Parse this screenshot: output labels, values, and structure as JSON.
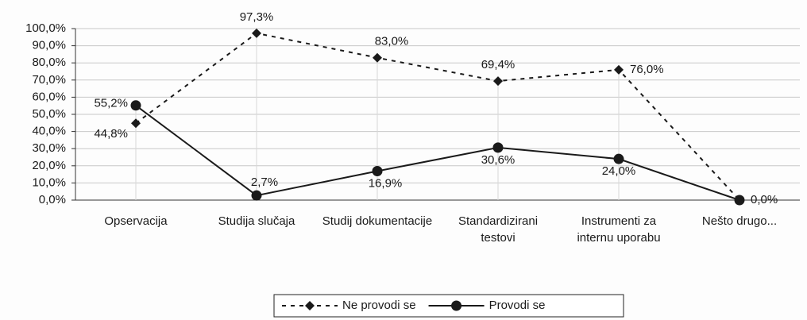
{
  "chart_data": {
    "type": "line",
    "categories": [
      "Opservacija",
      "Studija slučaja",
      "Studij dokumentacije",
      "Standardizirani testovi",
      "Instrumenti za internu uporabu",
      "Nešto drugo..."
    ],
    "series": [
      {
        "name": "Ne provodi se",
        "color": "#1a1a1a",
        "line_style": "dashed",
        "marker": "diamond",
        "values": [
          44.8,
          97.3,
          83.0,
          69.4,
          76.0,
          0.0
        ],
        "value_labels": [
          "44,8%",
          "97,3%",
          "83,0%",
          "69,4%",
          "76,0%",
          "0,0%"
        ]
      },
      {
        "name": "Provodi se",
        "color": "#1a1a1a",
        "line_style": "solid",
        "marker": "circle",
        "values": [
          55.2,
          2.7,
          16.9,
          30.6,
          24.0,
          0.0
        ],
        "value_labels": [
          "55,2%",
          "2,7%",
          "16,9%",
          "30,6%",
          "24,0%",
          null
        ]
      }
    ],
    "ylim": [
      0,
      100
    ],
    "yticks": [
      {
        "value": 0,
        "label": "0,0%"
      },
      {
        "value": 10,
        "label": "10,0%"
      },
      {
        "value": 20,
        "label": "20,0%"
      },
      {
        "value": 30,
        "label": "30,0%"
      },
      {
        "value": 40,
        "label": "40,0%"
      },
      {
        "value": 50,
        "label": "50,0%"
      },
      {
        "value": 60,
        "label": "60,0%"
      },
      {
        "value": 70,
        "label": "70,0%"
      },
      {
        "value": 80,
        "label": "80,0%"
      },
      {
        "value": 90,
        "label": "90,0%"
      },
      {
        "value": 100,
        "label": "100,0%"
      }
    ],
    "grid": true,
    "legend": "bottom"
  }
}
